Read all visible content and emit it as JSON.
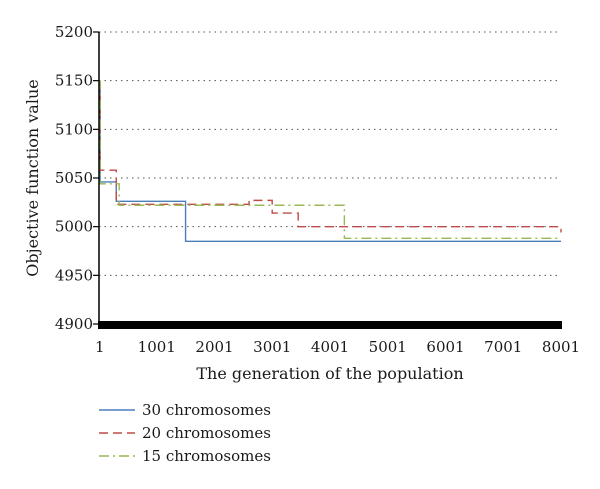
{
  "chart_data": {
    "type": "line",
    "xlabel": "The generation of the population",
    "ylabel": "Objective function value",
    "xlim": [
      1,
      8001
    ],
    "ylim": [
      4900,
      5200
    ],
    "x_ticks": [
      "1",
      "1001",
      "2001",
      "3001",
      "4001",
      "5001",
      "6001",
      "7001",
      "8001"
    ],
    "y_ticks": [
      "4900",
      "4950",
      "5000",
      "5050",
      "5100",
      "5150",
      "5200"
    ],
    "grid": "horizontal dotted",
    "legend_position": "bottom-left",
    "series": [
      {
        "name": "30 chromosomes",
        "color": "#4a7ebb",
        "dash": "solid",
        "x": [
          1,
          20,
          300,
          1500,
          1500,
          8001
        ],
        "y": [
          5140,
          5046,
          5026,
          5026,
          4985,
          4985
        ]
      },
      {
        "name": "20 chromosomes",
        "color": "#be4b48",
        "dash": "dashed",
        "x": [
          1,
          20,
          300,
          2600,
          3000,
          3450,
          8001
        ],
        "y": [
          5148,
          5058,
          5023,
          5027,
          5014,
          5000,
          4994
        ]
      },
      {
        "name": "15 chromosomes",
        "color": "#98b954",
        "dash": "dashdot",
        "x": [
          1,
          20,
          350,
          4250,
          4250,
          8001
        ],
        "y": [
          5150,
          5044,
          5022,
          5022,
          4988,
          4988
        ]
      }
    ]
  }
}
